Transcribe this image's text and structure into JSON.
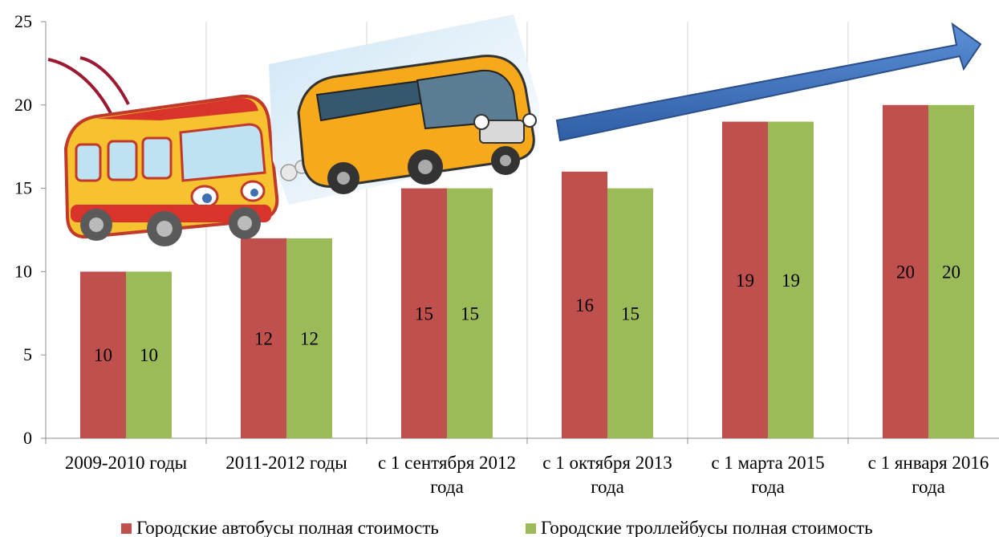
{
  "chart_data": {
    "type": "bar",
    "categories": [
      [
        "2009-2010 годы"
      ],
      [
        "2011-2012 годы"
      ],
      [
        "с 1 сентября 2012",
        "года"
      ],
      [
        "с 1 октября 2013",
        "года"
      ],
      [
        "с 1 марта 2015",
        "года"
      ],
      [
        "с 1 января 2016",
        "года"
      ]
    ],
    "series": [
      {
        "name": "Городские автобусы полная стоимость",
        "color": "#c0504d",
        "values": [
          10,
          12,
          15,
          16,
          19,
          20
        ]
      },
      {
        "name": "Городские троллейбусы полная стоимость",
        "color": "#9bbb59",
        "values": [
          10,
          12,
          15,
          15,
          19,
          20
        ]
      }
    ],
    "ylim": [
      0,
      25
    ],
    "yticks": [
      0,
      5,
      10,
      15,
      20,
      25
    ],
    "grid": "vertical",
    "legend": "bottom",
    "decorations": [
      "trolleybus-illustration",
      "bus-illustration",
      "trend-arrow"
    ]
  }
}
